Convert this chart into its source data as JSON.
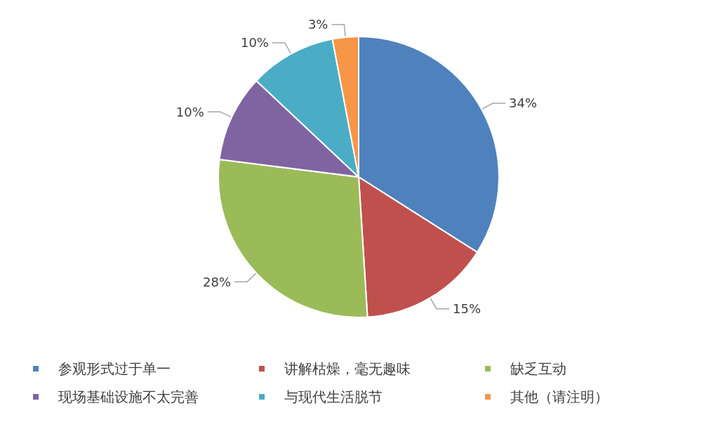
{
  "chart_data": {
    "type": "pie",
    "categories": [
      "参观形式过于单一",
      "讲解枯燥，毫无趣味",
      "缺乏互动",
      "现场基础设施不太完善",
      "与现代生活脱节",
      "其他（请注明）"
    ],
    "values": [
      34,
      15,
      28,
      10,
      10,
      3
    ],
    "value_labels": [
      "34%",
      "15%",
      "28%",
      "10%",
      "10%",
      "3%"
    ],
    "colors": [
      "#4f81bd",
      "#c0504d",
      "#9bbb59",
      "#8064a2",
      "#4bacc6",
      "#f79646"
    ],
    "legend": "bottom"
  }
}
